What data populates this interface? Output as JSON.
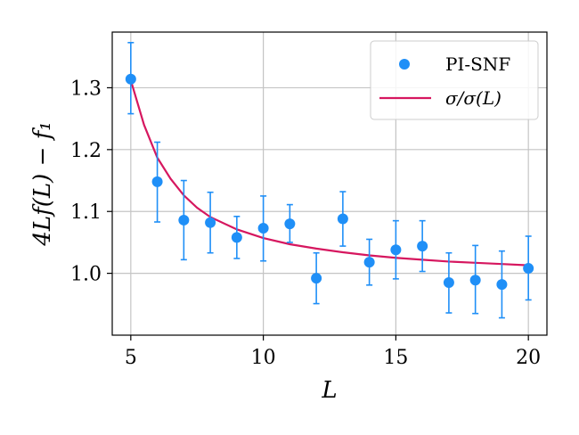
{
  "chart_data": {
    "type": "scatter",
    "title": "",
    "xlabel": "L",
    "ylabel": "4Lf(L) − f₁",
    "xlim": [
      4.3,
      20.7
    ],
    "ylim": [
      0.9,
      1.39
    ],
    "xticks": [
      5,
      10,
      15,
      20
    ],
    "yticks": [
      1.0,
      1.1,
      1.2,
      1.3
    ],
    "xtick_labels": [
      "5",
      "10",
      "15",
      "20"
    ],
    "ytick_labels": [
      "1.0",
      "1.1",
      "1.2",
      "1.3"
    ],
    "grid": true,
    "legend_position": "top-right",
    "series": [
      {
        "name": "PI-SNF",
        "kind": "errorbar",
        "color": "#1f8ff7",
        "x": [
          5,
          6,
          7,
          8,
          9,
          10,
          11,
          12,
          13,
          14,
          15,
          16,
          17,
          18,
          19,
          20
        ],
        "y": [
          1.314,
          1.148,
          1.086,
          1.082,
          1.058,
          1.073,
          1.08,
          0.992,
          1.088,
          1.018,
          1.038,
          1.044,
          0.985,
          0.989,
          0.982,
          1.008
        ],
        "yerr_low": [
          1.258,
          1.083,
          1.022,
          1.033,
          1.024,
          1.02,
          1.05,
          0.951,
          1.044,
          0.981,
          0.991,
          1.003,
          0.936,
          0.935,
          0.928,
          0.957
        ],
        "yerr_high": [
          1.373,
          1.212,
          1.15,
          1.131,
          1.092,
          1.125,
          1.111,
          1.033,
          1.132,
          1.055,
          1.085,
          1.085,
          1.033,
          1.045,
          1.036,
          1.06
        ]
      },
      {
        "name": "σ/σ(L)",
        "kind": "line",
        "color": "#d6175f",
        "x": [
          5,
          5.5,
          6,
          6.5,
          7,
          7.5,
          8,
          9,
          10,
          11,
          12,
          13,
          14,
          15,
          16,
          17,
          18,
          19,
          20
        ],
        "y": [
          1.312,
          1.24,
          1.187,
          1.153,
          1.126,
          1.106,
          1.091,
          1.071,
          1.057,
          1.047,
          1.04,
          1.034,
          1.029,
          1.025,
          1.022,
          1.019,
          1.017,
          1.015,
          1.013
        ]
      }
    ]
  }
}
